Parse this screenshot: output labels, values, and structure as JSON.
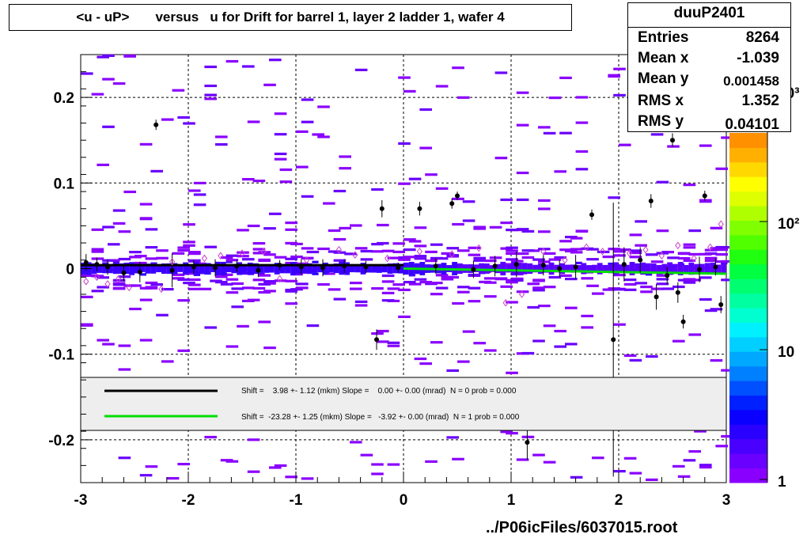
{
  "title": "<u - uP>       versus   u for Drift for barrel 1, layer 2 ladder 1, wafer 4",
  "stats": {
    "name": "duuP2401",
    "rows": [
      {
        "label": "Entries",
        "value": "8264"
      },
      {
        "label": "Mean x",
        "value": "-1.039"
      },
      {
        "label": "Mean y",
        "value": "0.001458"
      },
      {
        "label": "RMS x",
        "value": "1.352"
      },
      {
        "label": "RMS y",
        "value": "0.04101"
      }
    ]
  },
  "footer": "../P06icFiles/6037015.root",
  "legend": [
    {
      "text": "Shift =    3.98 +- 1.12 (mkm) Slope =    0.00 +- 0.00 (mrad)  N = 0 prob = 0.000",
      "color": "#000000"
    },
    {
      "text": "Shift =  -23.28 +- 1.25 (mkm) Slope =   -3.92 +- 0.00 (mrad)  N = 1 prob = 0.000",
      "color": "#00dd00"
    }
  ],
  "chart_data": {
    "type": "heatmap",
    "title": "<u - uP>       versus   u for Drift for barrel 1, layer 2 ladder 1, wafer 4",
    "xlim": [
      -3,
      3
    ],
    "ylim": [
      -0.25,
      0.25
    ],
    "x_ticks": [
      "-3",
      "-2",
      "-1",
      "0",
      "1",
      "2",
      "3"
    ],
    "y_ticks": [
      "-0.2",
      "-0.1",
      "0",
      "0.1",
      "0.2"
    ],
    "grid": true,
    "colorbar": {
      "scale": "log",
      "tick_labels": [
        "1",
        "10",
        "10²",
        "10³"
      ],
      "colors": [
        "#8a00ff",
        "#6a00ff",
        "#4a00ff",
        "#2a00ff",
        "#0a00ff",
        "#0020ff",
        "#0050ff",
        "#0080ff",
        "#00a8ff",
        "#00cfff",
        "#00f0ff",
        "#00ffd0",
        "#00ffa0",
        "#00ff70",
        "#00ff40",
        "#20ff10",
        "#50ff00",
        "#80ff00",
        "#b0ff00",
        "#ddff00",
        "#ffff00",
        "#ffd800",
        "#ffb000",
        "#ff9000"
      ]
    },
    "profile_points": [
      {
        "x": -2.95,
        "y": 0.007,
        "err": 0.01
      },
      {
        "x": -2.85,
        "y": 0.005,
        "err": 0.008
      },
      {
        "x": -2.75,
        "y": 0.002,
        "err": 0.009
      },
      {
        "x": -2.6,
        "y": -0.005,
        "err": 0.01
      },
      {
        "x": -2.45,
        "y": -0.004,
        "err": 0.012
      },
      {
        "x": -2.3,
        "y": 0.168,
        "err": 0.006
      },
      {
        "x": -2.15,
        "y": -0.002,
        "err": 0.02
      },
      {
        "x": -1.95,
        "y": 0.002,
        "err": 0.008
      },
      {
        "x": -1.75,
        "y": 0.001,
        "err": 0.01
      },
      {
        "x": -1.55,
        "y": 0.003,
        "err": 0.007
      },
      {
        "x": -1.35,
        "y": -0.002,
        "err": 0.008
      },
      {
        "x": -1.15,
        "y": 0.004,
        "err": 0.006
      },
      {
        "x": -0.95,
        "y": 0.002,
        "err": 0.009
      },
      {
        "x": -0.75,
        "y": 0.001,
        "err": 0.01
      },
      {
        "x": -0.55,
        "y": 0.003,
        "err": 0.008
      },
      {
        "x": -0.35,
        "y": 0.002,
        "err": 0.007
      },
      {
        "x": -0.25,
        "y": -0.083,
        "err": 0.012
      },
      {
        "x": -0.2,
        "y": 0.07,
        "err": 0.01
      },
      {
        "x": -0.05,
        "y": 0.001,
        "err": 0.006
      },
      {
        "x": 0.15,
        "y": 0.07,
        "err": 0.008
      },
      {
        "x": 0.3,
        "y": 0.003,
        "err": 0.009
      },
      {
        "x": 0.45,
        "y": 0.076,
        "err": 0.006
      },
      {
        "x": 0.5,
        "y": 0.085,
        "err": 0.005
      },
      {
        "x": 0.65,
        "y": -0.001,
        "err": 0.01
      },
      {
        "x": 0.85,
        "y": 0.003,
        "err": 0.012
      },
      {
        "x": 1.05,
        "y": 0.005,
        "err": 0.015
      },
      {
        "x": 1.15,
        "y": -0.203,
        "err": 0.02
      },
      {
        "x": 1.3,
        "y": 0.004,
        "err": 0.012
      },
      {
        "x": 1.45,
        "y": 0.0,
        "err": 0.01
      },
      {
        "x": 1.6,
        "y": 0.002,
        "err": 0.014
      },
      {
        "x": 1.75,
        "y": 0.063,
        "err": 0.006
      },
      {
        "x": 1.95,
        "y": -0.083,
        "err": 0.16
      },
      {
        "x": 2.05,
        "y": 0.005,
        "err": 0.02
      },
      {
        "x": 2.2,
        "y": 0.01,
        "err": 0.015
      },
      {
        "x": 2.3,
        "y": 0.079,
        "err": 0.008
      },
      {
        "x": 2.35,
        "y": -0.033,
        "err": 0.015
      },
      {
        "x": 2.45,
        "y": -0.008,
        "err": 0.01
      },
      {
        "x": 2.5,
        "y": 0.15,
        "err": 0.008
      },
      {
        "x": 2.55,
        "y": -0.028,
        "err": 0.012
      },
      {
        "x": 2.6,
        "y": -0.062,
        "err": 0.008
      },
      {
        "x": 2.75,
        "y": -0.001,
        "err": 0.015
      },
      {
        "x": 2.8,
        "y": 0.085,
        "err": 0.006
      },
      {
        "x": 2.9,
        "y": 0.002,
        "err": 0.01
      },
      {
        "x": 2.95,
        "y": -0.042,
        "err": 0.01
      }
    ],
    "diamond_points": [
      {
        "x": -2.95,
        "y": -0.015
      },
      {
        "x": -2.85,
        "y": -0.01
      },
      {
        "x": -2.75,
        "y": -0.018
      },
      {
        "x": -2.65,
        "y": -0.012
      },
      {
        "x": -2.55,
        "y": -0.022
      },
      {
        "x": -2.25,
        "y": -0.024
      },
      {
        "x": -2.15,
        "y": 0.008
      },
      {
        "x": -1.85,
        "y": 0.012
      },
      {
        "x": -1.7,
        "y": 0.015
      },
      {
        "x": -1.5,
        "y": 0.018
      },
      {
        "x": -1.3,
        "y": 0.02
      },
      {
        "x": -1.15,
        "y": -0.012
      },
      {
        "x": -0.9,
        "y": 0.01
      },
      {
        "x": -0.6,
        "y": 0.022
      },
      {
        "x": -0.45,
        "y": 0.016
      },
      {
        "x": -0.15,
        "y": 0.012
      },
      {
        "x": 0.15,
        "y": 0.02
      },
      {
        "x": 0.45,
        "y": 0.017
      },
      {
        "x": 0.7,
        "y": 0.024
      },
      {
        "x": 0.95,
        "y": -0.04
      },
      {
        "x": 1.1,
        "y": -0.03
      },
      {
        "x": 1.3,
        "y": 0.02
      },
      {
        "x": 1.5,
        "y": 0.01
      },
      {
        "x": 1.7,
        "y": 0.025
      },
      {
        "x": 1.85,
        "y": 0.02
      },
      {
        "x": 2.1,
        "y": 0.018
      },
      {
        "x": 2.25,
        "y": 0.022
      },
      {
        "x": 2.4,
        "y": 0.015
      },
      {
        "x": 2.55,
        "y": 0.027
      },
      {
        "x": 2.7,
        "y": 0.012
      },
      {
        "x": 2.85,
        "y": 0.025
      },
      {
        "x": 2.95,
        "y": 0.052
      }
    ],
    "fits": [
      {
        "name": "Shift =    3.98 +- 1.12 (mkm) Slope =    0.00 +- 0.00 (mrad)  N = 0 prob = 0.000",
        "color": "#000000",
        "x": [
          -3,
          0
        ],
        "y": [
          0.004,
          0.004
        ]
      },
      {
        "name": "Shift =  -23.28 +- 1.25 (mkm) Slope =   -3.92 +- 0.00 (mrad)  N = 1 prob = 0.000",
        "color": "#00dd00",
        "x": [
          0,
          3
        ],
        "y": [
          0.0,
          -0.006
        ]
      }
    ]
  }
}
